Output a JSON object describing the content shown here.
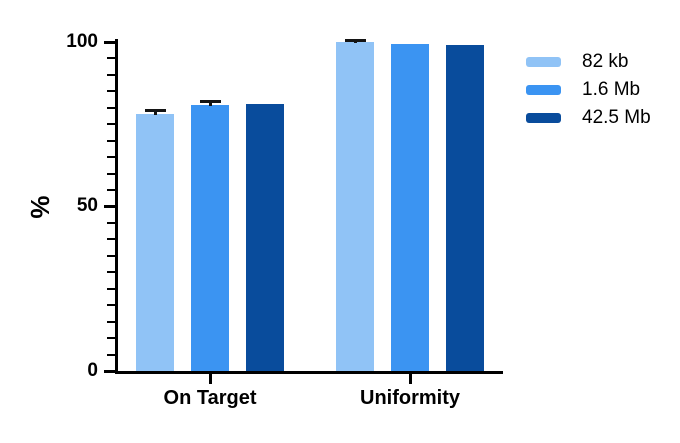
{
  "figure": {
    "background": "#ffffff",
    "axis_color": "#000000",
    "error_bar_color": "#141414"
  },
  "chart_data": {
    "type": "bar",
    "title": "",
    "categories": [
      "On Target",
      "Uniformity"
    ],
    "series": [
      {
        "name": "82 kb",
        "color": "#90C3F6",
        "values": [
          78,
          100
        ],
        "errors": [
          1.2,
          0.5
        ]
      },
      {
        "name": "1.6 Mb",
        "color": "#3B94F2",
        "values": [
          81,
          99.5
        ],
        "errors": [
          0.8,
          0
        ]
      },
      {
        "name": "42.5 Mb",
        "color": "#094C9C",
        "values": [
          81.3,
          99
        ],
        "errors": [
          0,
          0
        ]
      }
    ],
    "xlabel": "",
    "ylabel": "%",
    "ylim": [
      0,
      100
    ],
    "yticks": [
      0,
      50,
      100
    ],
    "minor_tick_step": 5,
    "grid": false,
    "legend_position": "right",
    "bar_outline": "none"
  }
}
